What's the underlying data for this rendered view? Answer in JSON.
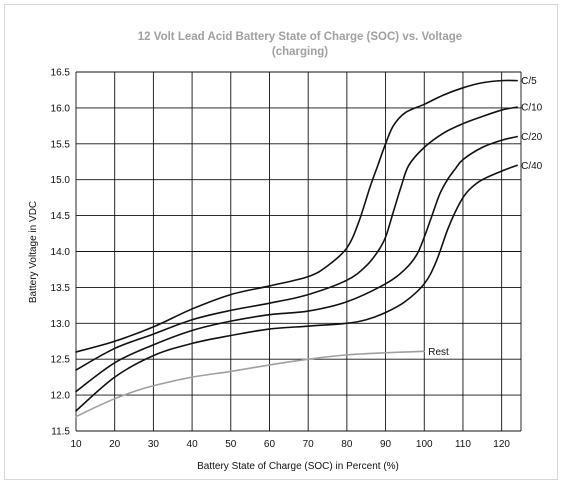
{
  "chart_data": {
    "type": "line",
    "title_line1": "12 Volt Lead Acid Battery State of Charge (SOC) vs. Voltage",
    "title_line2": "(charging)",
    "xlabel": "Battery State of Charge (SOC) in Percent (%)",
    "ylabel": "Battery Voltage in VDC",
    "xlim": [
      10,
      125
    ],
    "ylim": [
      11.5,
      16.5
    ],
    "x_ticks": [
      10,
      20,
      30,
      40,
      50,
      60,
      70,
      80,
      90,
      100,
      110,
      120
    ],
    "y_ticks": [
      "11.5",
      "12.0",
      "12.5",
      "13.0",
      "13.5",
      "14.0",
      "14.5",
      "15.0",
      "15.5",
      "16.0",
      "16.5"
    ],
    "grid": true,
    "colors": {
      "grid": "#111111",
      "charging": "#111111",
      "rest": "#a0a0a0",
      "title": "#a0a0a0"
    },
    "series": [
      {
        "name": "C/5",
        "color": "#111111",
        "x": [
          10,
          20,
          30,
          40,
          50,
          60,
          70,
          75,
          80,
          83,
          86,
          88,
          90,
          92,
          95,
          100,
          105,
          110,
          115,
          120,
          124
        ],
        "y": [
          12.6,
          12.75,
          12.95,
          13.2,
          13.4,
          13.52,
          13.65,
          13.8,
          14.05,
          14.4,
          14.9,
          15.2,
          15.5,
          15.75,
          15.93,
          16.05,
          16.18,
          16.28,
          16.35,
          16.38,
          16.38
        ]
      },
      {
        "name": "C/10",
        "color": "#111111",
        "x": [
          10,
          20,
          30,
          40,
          50,
          60,
          70,
          80,
          85,
          88,
          90,
          92,
          94,
          96,
          100,
          105,
          110,
          115,
          120,
          124
        ],
        "y": [
          12.35,
          12.65,
          12.85,
          13.05,
          13.18,
          13.28,
          13.4,
          13.6,
          13.8,
          14.0,
          14.2,
          14.55,
          14.9,
          15.2,
          15.45,
          15.65,
          15.78,
          15.88,
          15.97,
          16.01
        ]
      },
      {
        "name": "C/20",
        "color": "#111111",
        "x": [
          10,
          20,
          30,
          40,
          50,
          60,
          70,
          80,
          90,
          95,
          98,
          100,
          102,
          104,
          106,
          108,
          110,
          115,
          120,
          124
        ],
        "y": [
          12.05,
          12.45,
          12.7,
          12.9,
          13.03,
          13.12,
          13.17,
          13.3,
          13.55,
          13.75,
          13.95,
          14.2,
          14.5,
          14.8,
          15.0,
          15.15,
          15.28,
          15.45,
          15.55,
          15.6
        ]
      },
      {
        "name": "C/40",
        "color": "#111111",
        "x": [
          10,
          20,
          30,
          40,
          50,
          60,
          70,
          80,
          85,
          90,
          95,
          100,
          103,
          106,
          108,
          110,
          112,
          115,
          120,
          124
        ],
        "y": [
          11.78,
          12.25,
          12.55,
          12.72,
          12.83,
          12.92,
          12.96,
          13.0,
          13.05,
          13.15,
          13.3,
          13.55,
          13.85,
          14.3,
          14.55,
          14.75,
          14.88,
          15.0,
          15.12,
          15.2
        ]
      },
      {
        "name": "Rest",
        "color": "#a0a0a0",
        "x": [
          10,
          15,
          20,
          25,
          30,
          40,
          50,
          60,
          70,
          80,
          90,
          100
        ],
        "y": [
          11.7,
          11.83,
          11.95,
          12.05,
          12.13,
          12.25,
          12.33,
          12.42,
          12.5,
          12.56,
          12.59,
          12.61
        ]
      }
    ]
  }
}
